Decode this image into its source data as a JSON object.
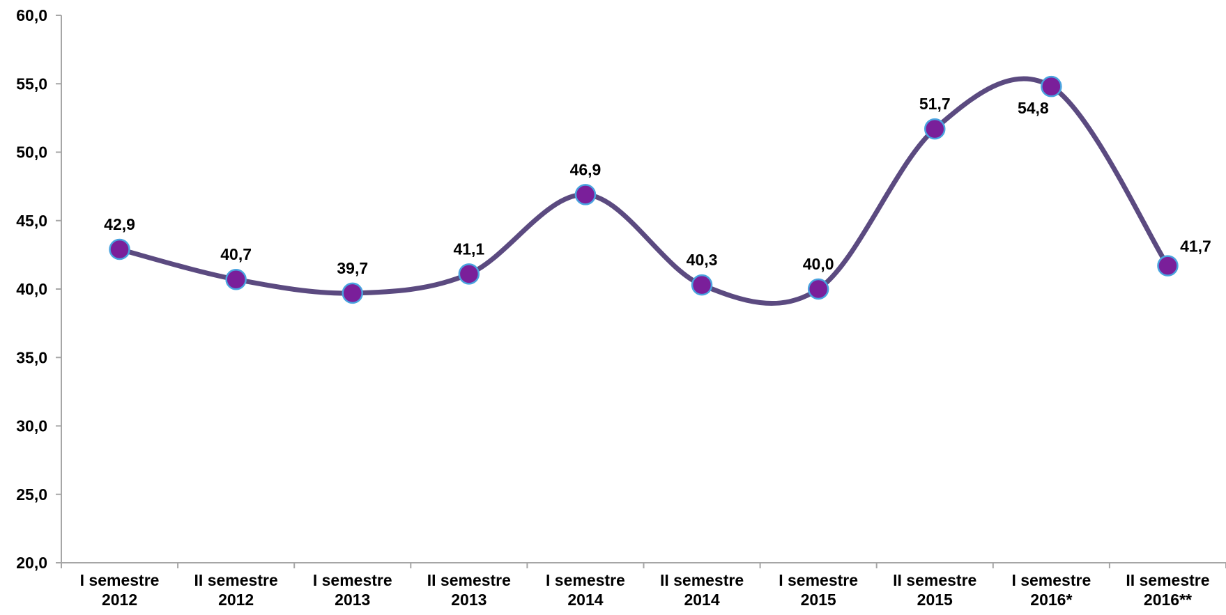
{
  "chart_data": {
    "type": "line",
    "title": "",
    "xlabel": "",
    "ylabel": "",
    "ylim": [
      20.0,
      60.0
    ],
    "y_ticks": [
      "20,0",
      "25,0",
      "30,0",
      "35,0",
      "40,0",
      "45,0",
      "50,0",
      "55,0",
      "60,0"
    ],
    "categories": [
      [
        "I semestre",
        "2012"
      ],
      [
        "II semestre",
        "2012"
      ],
      [
        "I semestre",
        "2013"
      ],
      [
        "II semestre",
        "2013"
      ],
      [
        "I semestre",
        "2014"
      ],
      [
        "II semestre",
        "2014"
      ],
      [
        "I semestre",
        "2015"
      ],
      [
        "II semestre",
        "2015"
      ],
      [
        "I semestre",
        "2016*"
      ],
      [
        "II semestre",
        "2016**"
      ]
    ],
    "values": [
      42.9,
      40.7,
      39.7,
      41.1,
      46.9,
      40.3,
      40.0,
      51.7,
      54.8,
      41.7
    ],
    "data_labels": [
      "42,9",
      "40,7",
      "39,7",
      "41,1",
      "46,9",
      "40,3",
      "40,0",
      "51,7",
      "54,8",
      "41,7"
    ],
    "smooth": true,
    "grid": false,
    "legend": "none",
    "colors": {
      "line": "#5b4a80",
      "marker_fill": "#7a1f9a",
      "marker_stroke": "#4aa3df",
      "axis": "#a6a6a6"
    }
  }
}
